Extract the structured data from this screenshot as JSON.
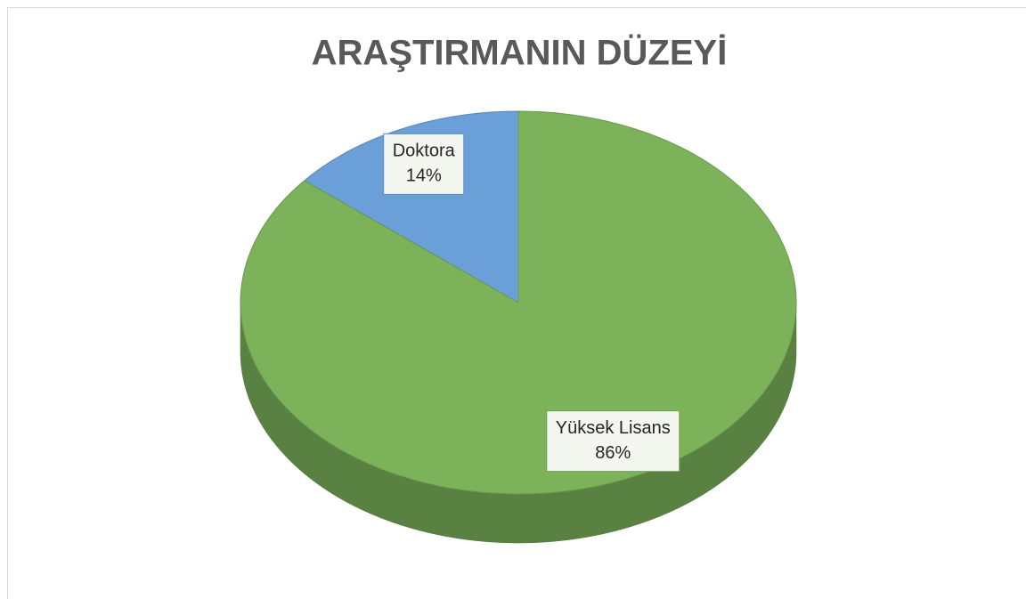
{
  "chart_data": {
    "type": "pie",
    "title": "ARAŞTIRMANIN DÜZEYİ",
    "categories": [
      "Doktora",
      "Yüksek Lisans"
    ],
    "values": [
      14,
      86
    ],
    "value_labels": [
      "14%",
      "86%"
    ],
    "colors": [
      "#6a9fd8",
      "#7cb35a"
    ]
  }
}
